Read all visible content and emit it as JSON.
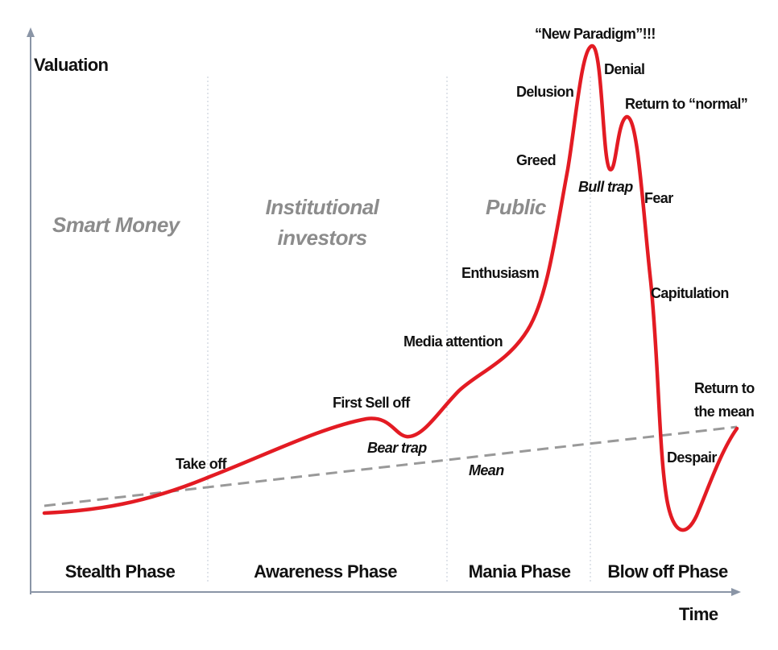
{
  "axes": {
    "y_label": "Valuation",
    "x_label": "Time"
  },
  "participants": {
    "smart_money": "Smart Money",
    "institutional": [
      "Institutional",
      "investors"
    ],
    "public": "Public"
  },
  "phases": [
    "Stealth Phase",
    "Awareness Phase",
    "Mania Phase",
    "Blow off Phase"
  ],
  "annotations": {
    "take_off": "Take off",
    "first_sell_off": "First Sell off",
    "bear_trap": "Bear trap",
    "mean": "Mean",
    "media_attention": "Media attention",
    "enthusiasm": "Enthusiasm",
    "greed": "Greed",
    "delusion": "Delusion",
    "new_paradigm": "“New Paradigm”!!!",
    "denial": "Denial",
    "bull_trap": "Bull trap",
    "return_to_normal": "Return to “normal”",
    "fear": "Fear",
    "capitulation": "Capitulation",
    "despair": "Despair",
    "return_to_mean": [
      "Return to",
      "the mean"
    ]
  }
}
